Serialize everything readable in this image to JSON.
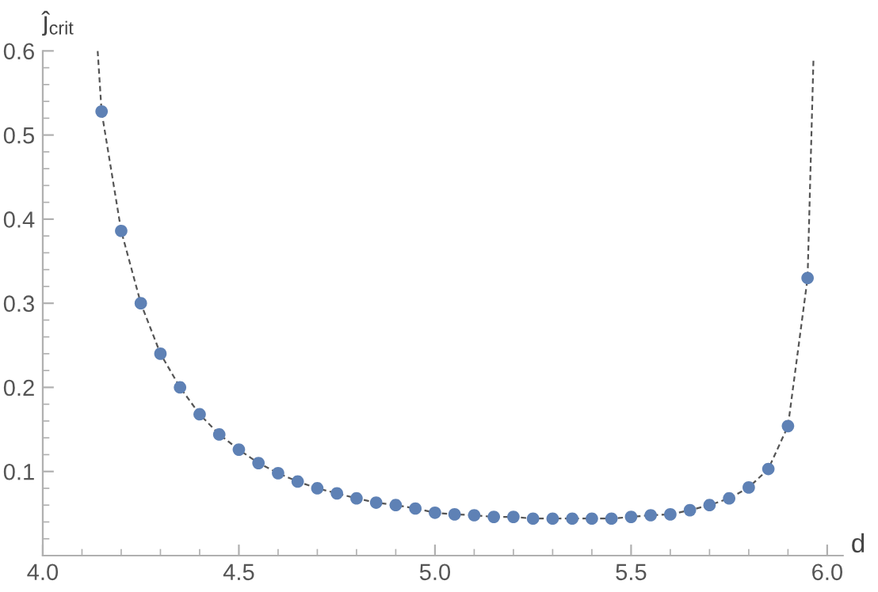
{
  "chart_data": {
    "type": "scatter",
    "xlabel": "d",
    "ylabel": "ĵ$_{crit}$",
    "xlim": [
      4.0,
      6.04
    ],
    "ylim": [
      0,
      0.6
    ],
    "xticks": [
      {
        "value": 4.0,
        "label": "4.0"
      },
      4.5,
      {
        "value": 5.0,
        "label": "5.0"
      },
      5.5,
      {
        "value": 6.0,
        "label": "6.0"
      }
    ],
    "yticks": [
      0.1,
      0.2,
      0.3,
      0.4,
      0.5,
      0.6
    ],
    "grid": false,
    "legend": false,
    "series": [
      {
        "type": "line",
        "color": "#555555",
        "line_style": "dashed",
        "marker": "none",
        "x": [
          4.14,
          4.15,
          4.2,
          4.25,
          4.3,
          4.35,
          4.4,
          4.45,
          4.5,
          4.55,
          4.6,
          4.65,
          4.7,
          4.75,
          4.8,
          4.85,
          4.9,
          4.95,
          5.0,
          5.05,
          5.1,
          5.15,
          5.2,
          5.25,
          5.3,
          5.35,
          5.4,
          5.45,
          5.5,
          5.55,
          5.6,
          5.65,
          5.7,
          5.75,
          5.8,
          5.85,
          5.9,
          5.95,
          5.965
        ],
        "values": [
          0.6,
          0.528,
          0.386,
          0.3,
          0.24,
          0.2,
          0.168,
          0.144,
          0.126,
          0.11,
          0.098,
          0.088,
          0.08,
          0.074,
          0.068,
          0.063,
          0.06,
          0.056,
          0.051,
          0.049,
          0.048,
          0.046,
          0.046,
          0.044,
          0.044,
          0.044,
          0.044,
          0.044,
          0.046,
          0.048,
          0.049,
          0.054,
          0.06,
          0.068,
          0.081,
          0.103,
          0.154,
          0.33,
          0.59
        ]
      },
      {
        "color": "#5e81b5",
        "marker": "circle",
        "x": [
          4.15,
          4.2,
          4.25,
          4.3,
          4.35,
          4.4,
          4.45,
          4.5,
          4.55,
          4.6,
          4.65,
          4.7,
          4.75,
          4.8,
          4.85,
          4.9,
          4.95,
          5.0,
          5.05,
          5.1,
          5.15,
          5.2,
          5.25,
          5.3,
          5.35,
          5.4,
          5.45,
          5.5,
          5.55,
          5.6,
          5.65,
          5.7,
          5.75,
          5.8,
          5.85,
          5.9,
          5.95
        ],
        "values": [
          0.528,
          0.386,
          0.3,
          0.24,
          0.2,
          0.168,
          0.144,
          0.126,
          0.11,
          0.098,
          0.088,
          0.08,
          0.074,
          0.068,
          0.063,
          0.06,
          0.056,
          0.051,
          0.049,
          0.048,
          0.046,
          0.046,
          0.044,
          0.044,
          0.044,
          0.044,
          0.044,
          0.046,
          0.048,
          0.049,
          0.054,
          0.06,
          0.068,
          0.081,
          0.103,
          0.154,
          0.33
        ]
      }
    ]
  }
}
